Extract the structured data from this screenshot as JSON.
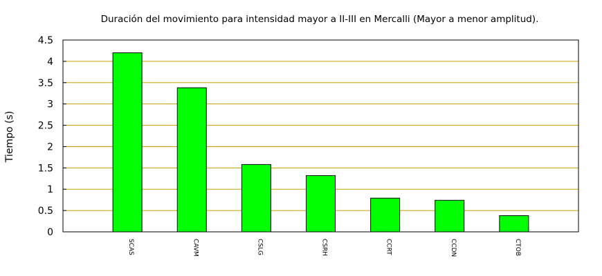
{
  "chart_data": {
    "type": "bar",
    "title": "Duración del movimiento para intensidad mayor a II-III en Mercalli (Mayor a menor amplitud).",
    "xlabel": "",
    "ylabel": "Tiempo (s)",
    "ylim": [
      0,
      4.5
    ],
    "yticks": [
      "0",
      "0.5",
      "1",
      "1.5",
      "2",
      "2.5",
      "3",
      "3.5",
      "4",
      "4.5"
    ],
    "categories": [
      "SCAS",
      "CAVM",
      "CSLG",
      "CSRH",
      "CCRT",
      "CCDN",
      "CTOB"
    ],
    "values": [
      4.2,
      3.38,
      1.58,
      1.32,
      0.79,
      0.74,
      0.38
    ],
    "grid": true,
    "colors": {
      "bar": "#00ff00",
      "bar_edge": "#000000",
      "grid": "#c8a000",
      "frame": "#000000"
    }
  }
}
